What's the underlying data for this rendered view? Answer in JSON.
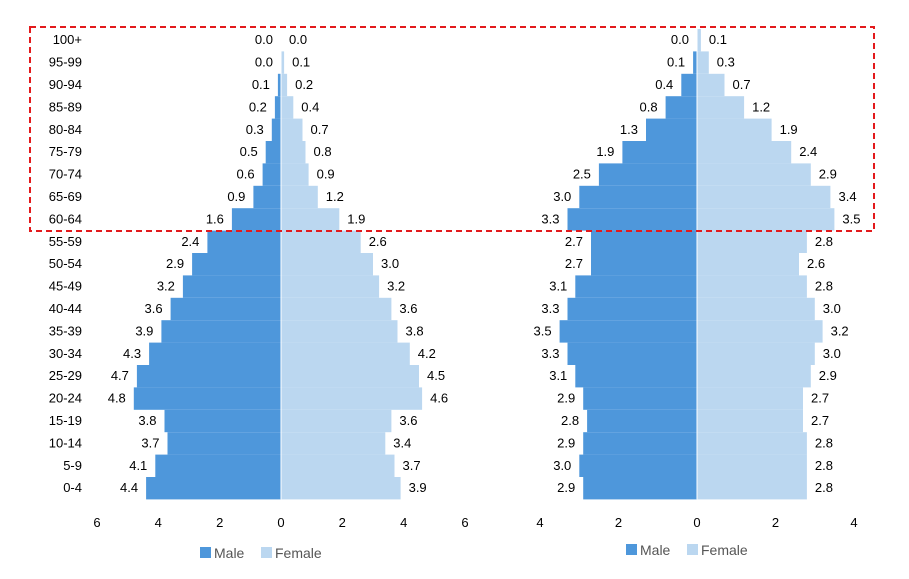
{
  "chart_data": [
    {
      "type": "bar",
      "orientation": "horizontal-population-pyramid",
      "categories": [
        "0-4",
        "5-9",
        "10-14",
        "15-19",
        "20-24",
        "25-29",
        "30-34",
        "35-39",
        "40-44",
        "45-49",
        "50-54",
        "55-59",
        "60-64",
        "65-69",
        "70-74",
        "75-79",
        "80-84",
        "85-89",
        "90-94",
        "95-99",
        "100+"
      ],
      "series": [
        {
          "name": "Male",
          "values": [
            4.4,
            4.1,
            3.7,
            3.8,
            4.8,
            4.7,
            4.3,
            3.9,
            3.6,
            3.2,
            2.9,
            2.4,
            1.6,
            0.9,
            0.6,
            0.5,
            0.3,
            0.2,
            0.1,
            0.0,
            0.0
          ]
        },
        {
          "name": "Female",
          "values": [
            3.9,
            3.7,
            3.4,
            3.6,
            4.6,
            4.5,
            4.2,
            3.8,
            3.6,
            3.2,
            3.0,
            2.6,
            1.9,
            1.2,
            0.9,
            0.8,
            0.7,
            0.4,
            0.2,
            0.1,
            0.0
          ]
        }
      ],
      "xlim": [
        -6,
        6
      ],
      "x_ticks": [
        "6",
        "4",
        "2",
        "0",
        "2",
        "4",
        "6"
      ],
      "legend": {
        "position": "bottom",
        "entries": [
          "Male",
          "Female"
        ]
      }
    },
    {
      "type": "bar",
      "orientation": "horizontal-population-pyramid",
      "categories": [
        "0-4",
        "5-9",
        "10-14",
        "15-19",
        "20-24",
        "25-29",
        "30-34",
        "35-39",
        "40-44",
        "45-49",
        "50-54",
        "55-59",
        "60-64",
        "65-69",
        "70-74",
        "75-79",
        "80-84",
        "85-89",
        "90-94",
        "95-99",
        "100+"
      ],
      "series": [
        {
          "name": "Male",
          "values": [
            2.9,
            3.0,
            2.9,
            2.8,
            2.9,
            3.1,
            3.3,
            3.5,
            3.3,
            3.1,
            2.7,
            2.7,
            3.3,
            3.0,
            2.5,
            1.9,
            1.3,
            0.8,
            0.4,
            0.1,
            0.0
          ]
        },
        {
          "name": "Female",
          "values": [
            2.8,
            2.8,
            2.8,
            2.7,
            2.7,
            2.9,
            3.0,
            3.2,
            3.0,
            2.8,
            2.6,
            2.8,
            3.5,
            3.4,
            2.9,
            2.4,
            1.9,
            1.2,
            0.7,
            0.3,
            0.1
          ]
        }
      ],
      "xlim": [
        -4,
        4
      ],
      "x_ticks": [
        "4",
        "2",
        "0",
        "2",
        "4"
      ],
      "legend": {
        "position": "bottom",
        "entries": [
          "Male",
          "Female"
        ]
      }
    }
  ],
  "highlight": {
    "description_color": "#e31a1c",
    "style": "dashed",
    "age_groups": [
      "60-64",
      "65-69",
      "70-74",
      "75-79",
      "80-84",
      "85-89",
      "90-94",
      "95-99",
      "100+"
    ]
  },
  "colors": {
    "male": "#4e97db",
    "female": "#bbd7f0",
    "highlight": "#e31a1c"
  }
}
